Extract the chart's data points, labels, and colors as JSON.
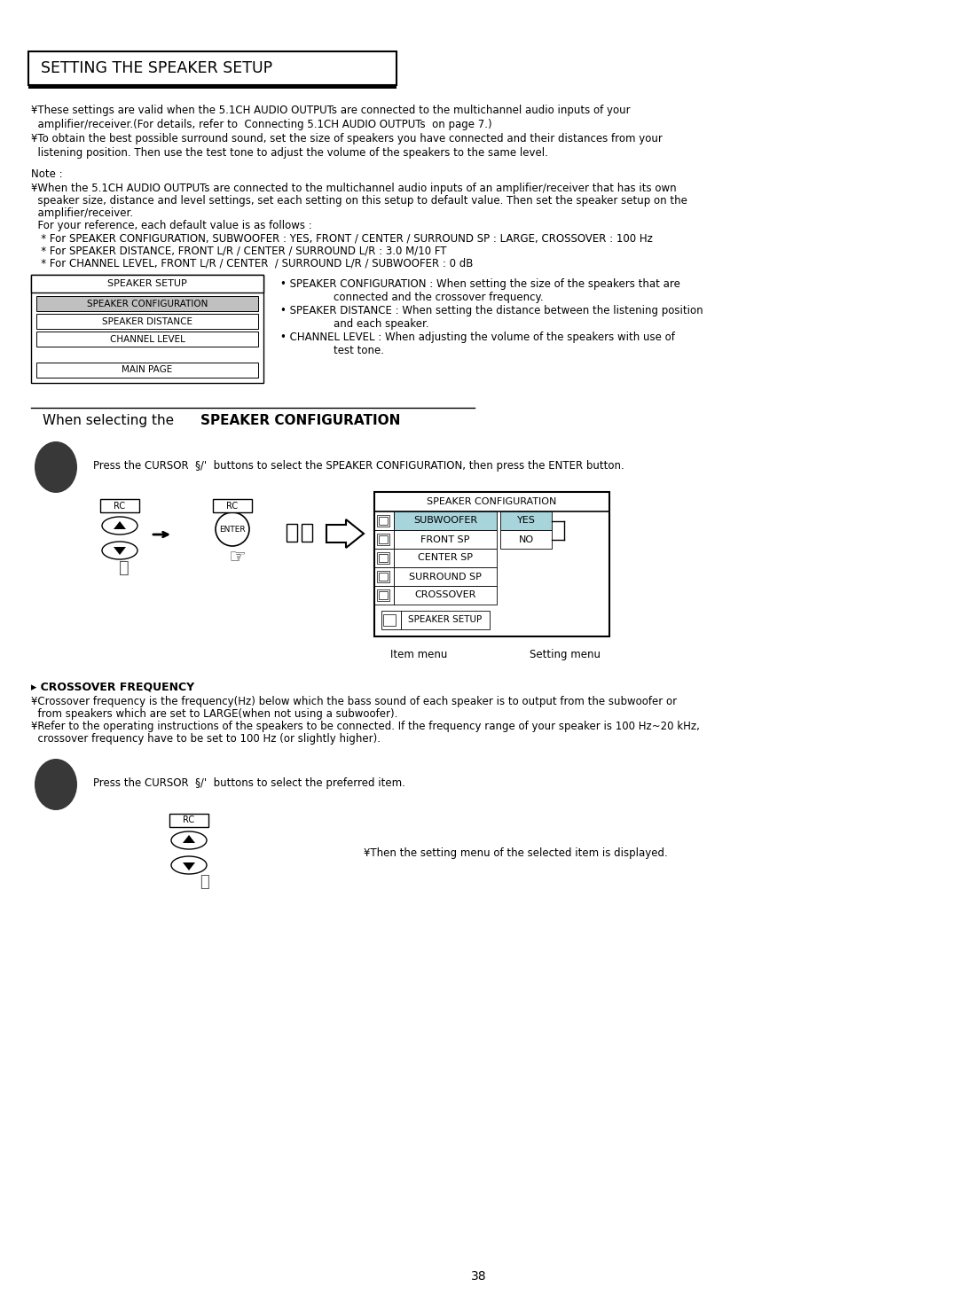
{
  "title": "SETTING THE SPEAKER SETUP",
  "bg_color": "#ffffff",
  "text_color": "#000000",
  "page_number": "38",
  "para1_lines": [
    "¥These settings are valid when the 5.1CH AUDIO OUTPUTs are connected to the multichannel audio inputs of your",
    "  amplifier/receiver.(For details, refer to  Connecting 5.1CH AUDIO OUTPUTs  on page 7.)",
    "¥To obtain the best possible surround sound, set the size of speakers you have connected and their distances from your",
    "  listening position. Then use the test tone to adjust the volume of the speakers to the same level."
  ],
  "note_label": "Note :",
  "note_lines": [
    "¥When the 5.1CH AUDIO OUTPUTs are connected to the multichannel audio inputs of an amplifier/receiver that has its own",
    "  speaker size, distance and level settings, set each setting on this setup to default value. Then set the speaker setup on the",
    "  amplifier/receiver.",
    "  For your reference, each default value is as follows :",
    "   * For SPEAKER CONFIGURATION, SUBWOOFER : YES, FRONT / CENTER / SURROUND SP : LARGE, CROSSOVER : 100 Hz",
    "   * For SPEAKER DISTANCE, FRONT L/R / CENTER / SURROUND L/R : 3.0 M/10 FT",
    "   * For CHANNEL LEVEL, FRONT L/R / CENTER  / SURROUND L/R / SUBWOOFER : 0 dB"
  ],
  "speaker_setup_menu": [
    "SPEAKER CONFIGURATION",
    "SPEAKER DISTANCE",
    "CHANNEL LEVEL",
    "MAIN PAGE"
  ],
  "bullet_lines": [
    "• SPEAKER CONFIGURATION : When setting the size of the speakers that are",
    "                connected and the crossover frequency.",
    "• SPEAKER DISTANCE : When setting the distance between the listening position",
    "                and each speaker.",
    "• CHANNEL LEVEL : When adjusting the volume of the speakers with use of",
    "                test tone."
  ],
  "section2_title_normal": "When selecting the ",
  "section2_title_bold": "SPEAKER CONFIGURATION",
  "step1_text": "Press the CURSOR  §/'  buttons to select the SPEAKER CONFIGURATION, then press the ENTER button.",
  "speaker_config_items": [
    "SUBWOOFER",
    "FRONT SP",
    "CENTER SP",
    "SURROUND SP",
    "CROSSOVER"
  ],
  "speaker_config_bottom": "SPEAKER SETUP",
  "config_options": [
    "YES",
    "NO"
  ],
  "item_menu_label": "Item menu",
  "setting_menu_label": "Setting menu",
  "crossover_title": "▸ CROSSOVER FREQUENCY",
  "crossover_lines": [
    "¥Crossover frequency is the frequency(Hz) below which the bass sound of each speaker is to output from the subwoofer or",
    "  from speakers which are set to LARGE(when not using a subwoofer).",
    "¥Refer to the operating instructions of the speakers to be connected. If the frequency range of your speaker is 100 Hz~20 kHz,",
    "  crossover frequency have to be set to 100 Hz (or slightly higher)."
  ],
  "step2_text": "Press the CURSOR  §/'  buttons to select the preferred item.",
  "step2_note": "¥Then the setting menu of the selected item is displayed."
}
